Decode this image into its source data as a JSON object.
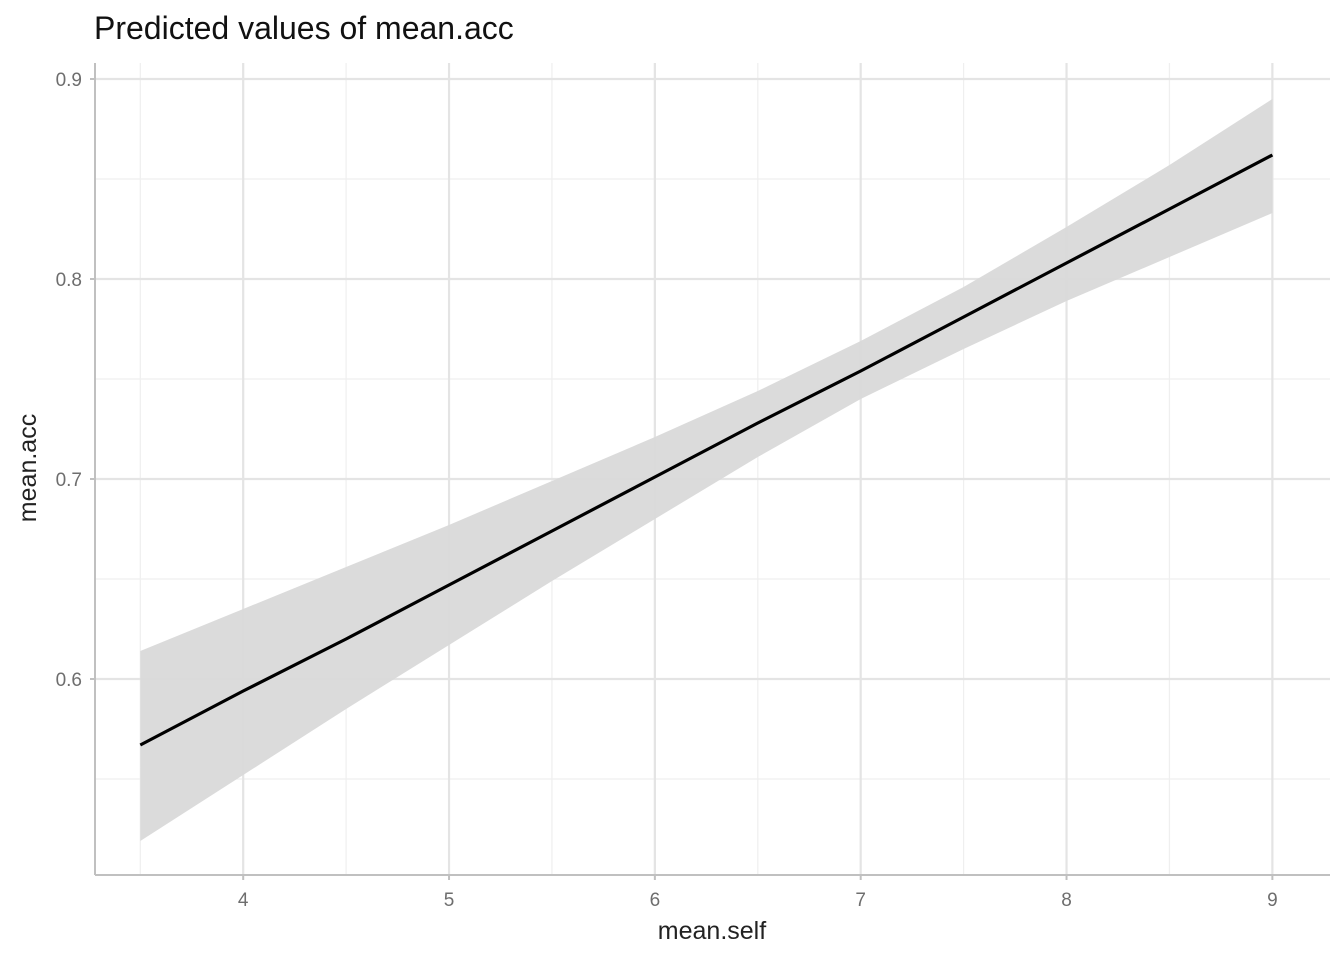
{
  "chart_data": {
    "type": "line",
    "title": "Predicted values of mean.acc",
    "xlabel": "mean.self",
    "ylabel": "mean.acc",
    "xlim": [
      3.28,
      9.28
    ],
    "ylim": [
      0.502,
      0.908
    ],
    "x_ticks": [
      4,
      5,
      6,
      7,
      8,
      9
    ],
    "x_tick_labels": [
      "4",
      "5",
      "6",
      "7",
      "8",
      "9"
    ],
    "x_minor_ticks": [
      3.5,
      4.5,
      5.5,
      6.5,
      7.5,
      8.5
    ],
    "y_ticks": [
      0.6,
      0.7,
      0.8,
      0.9
    ],
    "y_tick_labels": [
      "0.6",
      "0.7",
      "0.8",
      "0.9"
    ],
    "y_minor_ticks": [
      0.55,
      0.65,
      0.75,
      0.85
    ],
    "grid": true,
    "series": [
      {
        "x": [
          3.5,
          4,
          4.5,
          5,
          5.5,
          6,
          6.5,
          7,
          7.5,
          8,
          8.5,
          9
        ],
        "y": [
          0.567,
          0.594,
          0.62,
          0.647,
          0.674,
          0.701,
          0.728,
          0.754,
          0.781,
          0.808,
          0.835,
          0.862
        ],
        "lower": [
          0.519,
          0.552,
          0.585,
          0.617,
          0.649,
          0.68,
          0.711,
          0.74,
          0.765,
          0.789,
          0.811,
          0.833
        ],
        "upper": [
          0.614,
          0.635,
          0.656,
          0.677,
          0.699,
          0.721,
          0.744,
          0.769,
          0.796,
          0.826,
          0.857,
          0.89
        ]
      }
    ],
    "colors": {
      "line": "#000000",
      "ribbon": "#d9d9d9",
      "grid_major": "#e4e4e4",
      "grid_minor": "#efefef",
      "axis": "#c0c0c0"
    }
  }
}
